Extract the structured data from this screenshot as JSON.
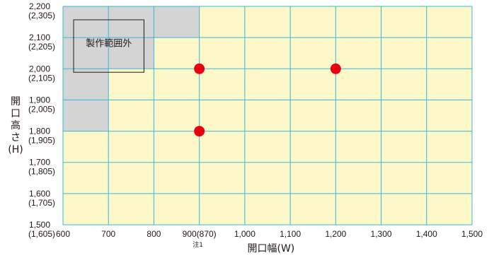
{
  "chart_data": {
    "type": "scatter",
    "title": "",
    "xlabel": "開口幅(W)",
    "ylabel_chars": [
      "開",
      "口",
      "高",
      "さ",
      "(H)"
    ],
    "x_ticks": [
      {
        "value": 600,
        "label": "600"
      },
      {
        "value": 700,
        "label": "700"
      },
      {
        "value": 800,
        "label": "800"
      },
      {
        "value": 900,
        "label": "900(870)"
      },
      {
        "value": 1000,
        "label": "1,000"
      },
      {
        "value": 1100,
        "label": "1,100"
      },
      {
        "value": 1200,
        "label": "1,200"
      },
      {
        "value": 1300,
        "label": "1,300"
      },
      {
        "value": 1400,
        "label": "1,400"
      },
      {
        "value": 1500,
        "label": "1,500"
      }
    ],
    "x_note": {
      "value": 900,
      "label": "注1"
    },
    "y_ticks": [
      {
        "value": 2200,
        "label": "2,200",
        "sub": "(2,305)"
      },
      {
        "value": 2100,
        "label": "2,100",
        "sub": "(2,205)"
      },
      {
        "value": 2000,
        "label": "2,000",
        "sub": "(2,105)"
      },
      {
        "value": 1900,
        "label": "1,900",
        "sub": "(2,005)"
      },
      {
        "value": 1800,
        "label": "1,800",
        "sub": "(1,905)"
      },
      {
        "value": 1700,
        "label": "1,700",
        "sub": "(1,805)"
      },
      {
        "value": 1600,
        "label": "1,600",
        "sub": "(1,705)"
      },
      {
        "value": 1500,
        "label": "1,500",
        "sub": "(1,605)"
      }
    ],
    "xlim": [
      600,
      1500
    ],
    "ylim": [
      1500,
      2200
    ],
    "excluded_region": {
      "label": "製作範囲外",
      "cells": [
        {
          "x": [
            600,
            900
          ],
          "y": [
            2100,
            2200
          ]
        },
        {
          "x": [
            600,
            800
          ],
          "y": [
            2000,
            2100
          ]
        },
        {
          "x": [
            600,
            700
          ],
          "y": [
            1800,
            2000
          ]
        }
      ]
    },
    "points": [
      {
        "x": 900,
        "y": 2000
      },
      {
        "x": 1200,
        "y": 2000
      },
      {
        "x": 900,
        "y": 1800
      }
    ],
    "colors": {
      "background": "#fdf8c9",
      "grid": "#3ab7dc",
      "excluded": "#d4d4d4",
      "point": "#e60012"
    },
    "grid": true
  }
}
